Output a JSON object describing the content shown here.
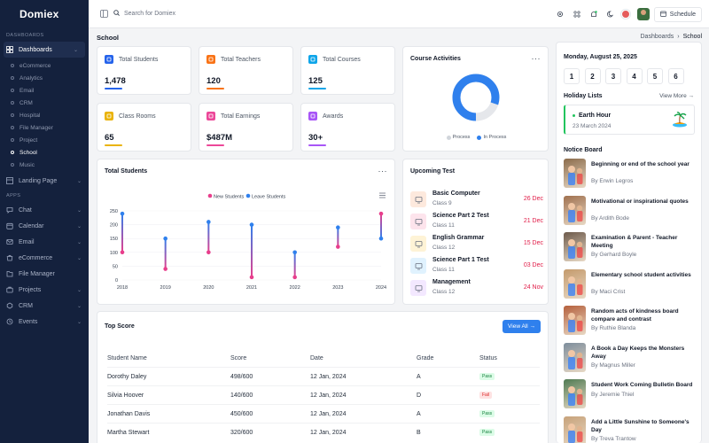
{
  "app": {
    "brand": "Domiex"
  },
  "search": {
    "placeholder": "Search for Domiex"
  },
  "topbar": {
    "schedule_label": "Schedule"
  },
  "sidebar": {
    "dashboards_label": "DASHBOARDS",
    "apps_label": "APPS",
    "dashboards": "Dashboards",
    "sub_items": [
      "eCommerce",
      "Analytics",
      "Email",
      "CRM",
      "Hospital",
      "File Manager",
      "Project",
      "School",
      "Music"
    ],
    "landing_page": "Landing Page",
    "apps": [
      "Chat",
      "Calendar",
      "Email",
      "eCommerce",
      "File Manager",
      "Projects",
      "CRM",
      "Events"
    ]
  },
  "page": {
    "title": "School",
    "breadcrumb": [
      "Dashboards",
      "School"
    ]
  },
  "stats": [
    {
      "label": "Total Students",
      "value": "1,478",
      "color": "#2563eb"
    },
    {
      "label": "Total Teachers",
      "value": "120",
      "color": "#f97316"
    },
    {
      "label": "Total Courses",
      "value": "125",
      "color": "#0ea5e9"
    },
    {
      "label": "Class Rooms",
      "value": "65",
      "color": "#eab308"
    },
    {
      "label": "Total Earnings",
      "value": "$487M",
      "color": "#ec4899"
    },
    {
      "label": "Awards",
      "value": "30+",
      "color": "#a855f7"
    }
  ],
  "course_activities": {
    "title": "Course Activities",
    "legend": [
      "Process",
      "In Process"
    ],
    "values": {
      "Process": 0.2,
      "In Process": 0.8
    }
  },
  "chart_data": {
    "type": "line",
    "title": "Total Students",
    "legend": [
      "New Students",
      "Leave Students"
    ],
    "x": [
      "2018",
      "2019",
      "2020",
      "2021",
      "2022",
      "2023",
      "2024"
    ],
    "ylim": [
      0,
      250
    ],
    "yticks": [
      "250",
      "200",
      "150",
      "100",
      "50",
      "0"
    ],
    "series": [
      {
        "name": "New Students",
        "color": "#e83e8c",
        "values": [
          100,
          40,
          100,
          10,
          10,
          120,
          240
        ]
      },
      {
        "name": "Leave Students",
        "color": "#2f80ed",
        "values": [
          240,
          150,
          210,
          200,
          100,
          190,
          150
        ]
      }
    ]
  },
  "upcoming_test": {
    "title": "Upcoming Test",
    "items": [
      {
        "name": "Basic Computer",
        "class": "Class 9",
        "date": "26 Dec",
        "bg": "#fde9dd",
        "icon": "monitor-icon"
      },
      {
        "name": "Science Part 2 Test",
        "class": "Class 11",
        "date": "21 Dec",
        "bg": "#fde4ec",
        "icon": "flask-icon"
      },
      {
        "name": "English Grammar",
        "class": "Class 12",
        "date": "15 Dec",
        "bg": "#fef3d6",
        "icon": "book-icon"
      },
      {
        "name": "Science Part 1 Test",
        "class": "Class 11",
        "date": "03 Dec",
        "bg": "#e0f2fe",
        "icon": "atom-icon"
      },
      {
        "name": "Management",
        "class": "Class 12",
        "date": "24 Nov",
        "bg": "#f3e8ff",
        "icon": "chart-icon"
      }
    ]
  },
  "top_score": {
    "title": "Top Score",
    "view_all": "View All →",
    "headers": [
      "Student Name",
      "Score",
      "Date",
      "Grade",
      "Status"
    ],
    "rows": [
      {
        "name": "Dorothy Daley",
        "score": "498/600",
        "date": "12 Jan, 2024",
        "grade": "A",
        "status": "Pass"
      },
      {
        "name": "Silvia Hoover",
        "score": "140/600",
        "date": "12 Jan, 2024",
        "grade": "D",
        "status": "Fail"
      },
      {
        "name": "Jonathan Davis",
        "score": "450/600",
        "date": "12 Jan, 2024",
        "grade": "A",
        "status": "Pass"
      },
      {
        "name": "Martha Stewart",
        "score": "320/600",
        "date": "12 Jan, 2024",
        "grade": "B",
        "status": "Pass"
      }
    ]
  },
  "calendar": {
    "date_title": "Monday, August 25, 2025",
    "days": [
      "1",
      "2",
      "3",
      "4",
      "5",
      "6"
    ]
  },
  "holiday": {
    "title": "Holiday Lists",
    "view_more": "View More →",
    "name": "Earth Hour",
    "date": "23 March 2024"
  },
  "notice_board": {
    "title": "Notice Board",
    "items": [
      {
        "title": "Beginning or end of the school year",
        "by": "By Erwin Legros",
        "color": "#8b6b4a"
      },
      {
        "title": "Motivational or inspirational quotes",
        "by": "By Ardith Bode",
        "color": "#a0714f"
      },
      {
        "title": "Examination & Parent - Teacher Meeting",
        "by": "By Gerhard Boyle",
        "color": "#6d5a4b"
      },
      {
        "title": "Elementary school student activities",
        "by": "By Maci Crist",
        "color": "#c49a6c"
      },
      {
        "title": "Random acts of kindness board compare and contrast",
        "by": "By Ruthie Blanda",
        "color": "#b5603c"
      },
      {
        "title": "A Book a Day Keeps the Monsters Away",
        "by": "By Magnus Miller",
        "color": "#7d8d9c"
      },
      {
        "title": "Student Work Coming Bulletin Board",
        "by": "By Jeremie Thiel",
        "color": "#4f7a52"
      },
      {
        "title": "Add a Little Sunshine to Someone's Day",
        "by": "By Treva Trantow",
        "color": "#c7a27a"
      }
    ]
  }
}
